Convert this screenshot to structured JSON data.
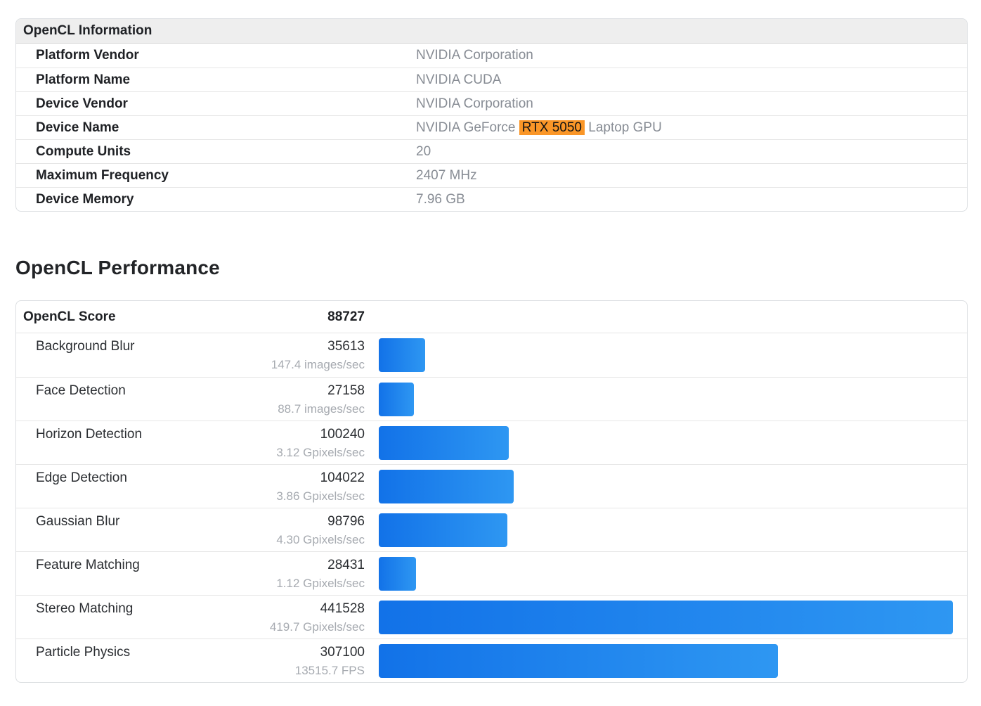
{
  "colors": {
    "highlight": "#FA9627",
    "bar_gradient": [
      "#1272E8",
      "#2E97F2"
    ],
    "header_bg": "#EEEEEE",
    "label_text": "#1F2125",
    "value_text": "#878C94",
    "subvalue_text": "#A6AAB0"
  },
  "info_card": {
    "title": "OpenCL Information",
    "rows": [
      {
        "label": "Platform Vendor",
        "value": [
          {
            "text": "NVIDIA Corporation",
            "highlight": false
          }
        ]
      },
      {
        "label": "Platform Name",
        "value": [
          {
            "text": "NVIDIA CUDA",
            "highlight": false
          }
        ]
      },
      {
        "label": "Device Vendor",
        "value": [
          {
            "text": "NVIDIA Corporation",
            "highlight": false
          }
        ]
      },
      {
        "label": "Device Name",
        "value": [
          {
            "text": "NVIDIA GeForce ",
            "highlight": false
          },
          {
            "text": "RTX 5050",
            "highlight": true
          },
          {
            "text": " Laptop GPU",
            "highlight": false
          }
        ]
      },
      {
        "label": "Compute Units",
        "value": [
          {
            "text": "20",
            "highlight": false
          }
        ]
      },
      {
        "label": "Maximum Frequency",
        "value": [
          {
            "text": "2407 MHz",
            "highlight": false
          }
        ]
      },
      {
        "label": "Device Memory",
        "value": [
          {
            "text": "7.96 GB",
            "highlight": false
          }
        ]
      }
    ]
  },
  "performance": {
    "heading": "OpenCL Performance",
    "score_label": "OpenCL Score",
    "score_value": "88727"
  },
  "chart_data": {
    "type": "bar",
    "orientation": "horizontal",
    "title": "OpenCL Performance",
    "xlabel": "",
    "ylabel": "",
    "xlim": [
      0,
      441528
    ],
    "grid": false,
    "legend": "none",
    "overall_score": 88727,
    "categories": [
      "Background Blur",
      "Face Detection",
      "Horizon Detection",
      "Edge Detection",
      "Gaussian Blur",
      "Feature Matching",
      "Stereo Matching",
      "Particle Physics"
    ],
    "values": [
      35613,
      27158,
      100240,
      104022,
      98796,
      28431,
      441528,
      307100
    ],
    "subvalues": [
      "147.4 images/sec",
      "88.7 images/sec",
      "3.12 Gpixels/sec",
      "3.86 Gpixels/sec",
      "4.30 Gpixels/sec",
      "1.12 Gpixels/sec",
      "419.7 Gpixels/sec",
      "13515.7 FPS"
    ]
  }
}
